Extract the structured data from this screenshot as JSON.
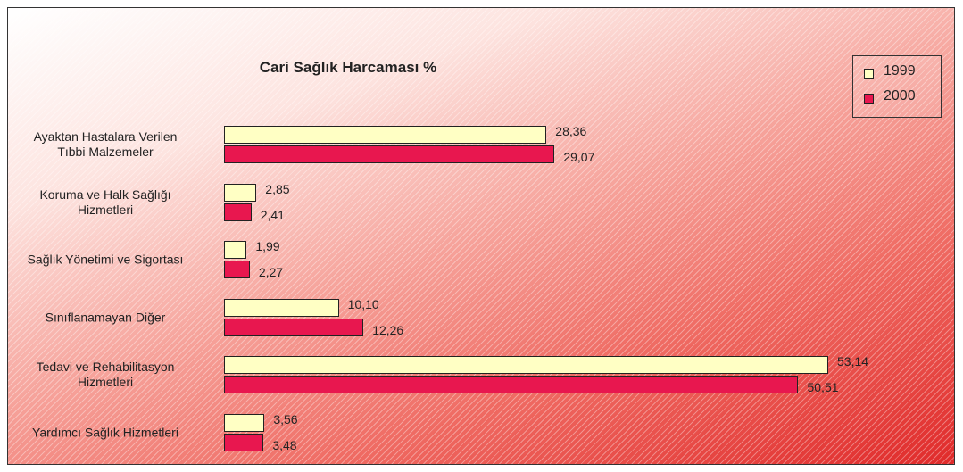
{
  "chart_data": {
    "type": "bar",
    "orientation": "horizontal",
    "title": "Cari Sağlık Harcaması %",
    "categories": [
      "Ayaktan Hastalara Verilen\nTıbbi Malzemeler",
      "Koruma ve Halk Sağlığı\nHizmetleri",
      "Sağlık Yönetimi ve Sigortası",
      "Sınıflanamayan Diğer",
      "Tedavi ve Rehabilitasyon\nHizmetleri",
      "Yardımcı Sağlık Hizmetleri"
    ],
    "series": [
      {
        "name": "1999",
        "color": "#ffffc4",
        "values": [
          28.36,
          2.85,
          1.99,
          10.1,
          53.14,
          3.56
        ],
        "value_labels": [
          "28,36",
          "2,85",
          "1,99",
          "10,10",
          "53,14",
          "3,56"
        ]
      },
      {
        "name": "2000",
        "color": "#e8174f",
        "values": [
          29.07,
          2.41,
          2.27,
          12.26,
          50.51,
          3.48
        ],
        "value_labels": [
          "29,07",
          "2,41",
          "2,27",
          "12,26",
          "50,51",
          "3,48"
        ]
      }
    ],
    "legend": "top-right"
  }
}
